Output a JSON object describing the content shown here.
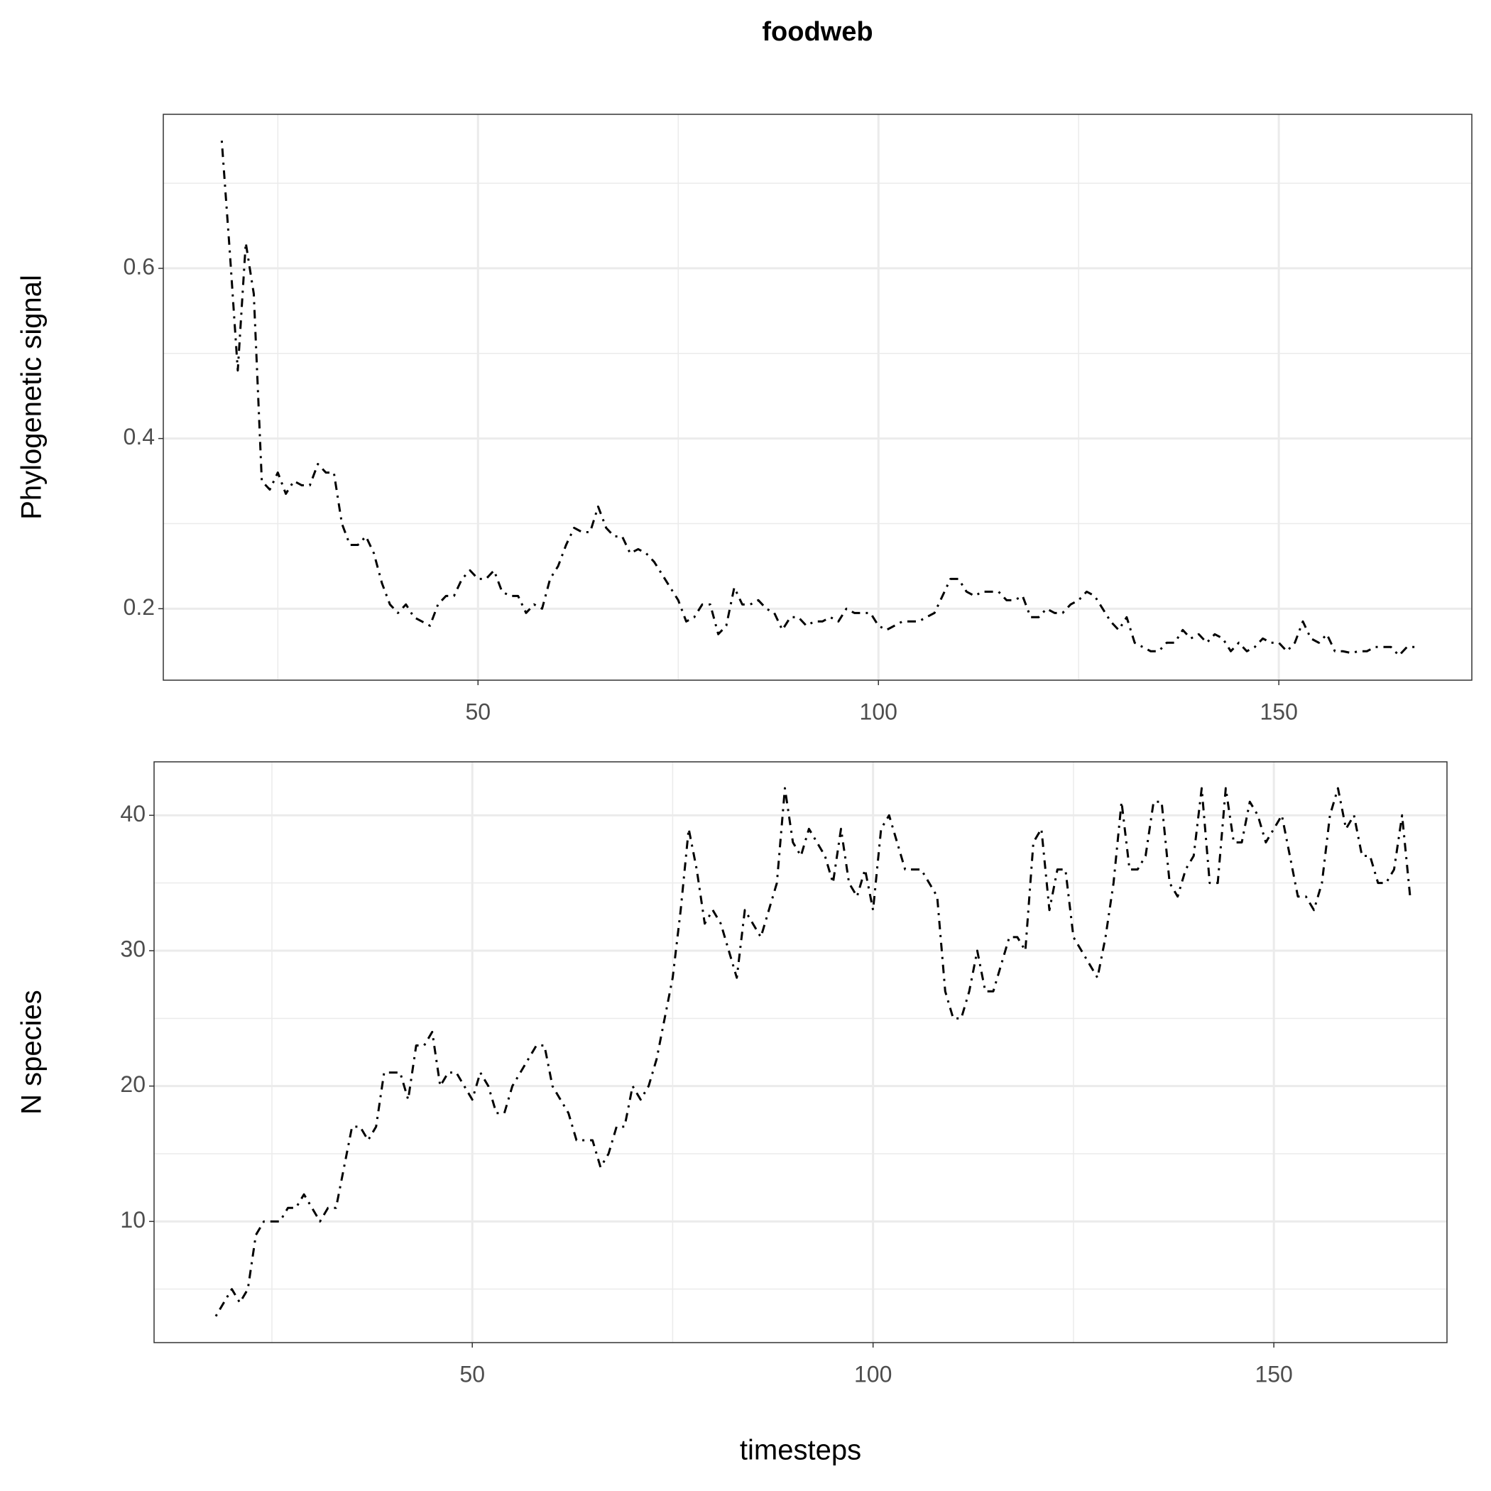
{
  "chart_data": [
    {
      "type": "line",
      "title": "foodweb",
      "ylabel": "Phylogenetic signal",
      "color": "#000000",
      "grid": true,
      "xlim": [
        10.7,
        174.1
      ],
      "xticks": [
        50,
        100,
        150
      ],
      "ylim": [
        0.116,
        0.781
      ],
      "yticks": [
        0.2,
        0.4,
        0.6
      ],
      "x": [
        18,
        19,
        20,
        21,
        22,
        23,
        24,
        25,
        26,
        27,
        28,
        29,
        30,
        31,
        32,
        33,
        34,
        35,
        36,
        37,
        38,
        39,
        40,
        41,
        42,
        43,
        44,
        45,
        46,
        47,
        48,
        49,
        50,
        51,
        52,
        53,
        54,
        55,
        56,
        57,
        58,
        59,
        60,
        61,
        62,
        63,
        64,
        65,
        66,
        67,
        68,
        69,
        70,
        71,
        72,
        73,
        74,
        75,
        76,
        77,
        78,
        79,
        80,
        81,
        82,
        83,
        84,
        85,
        86,
        87,
        88,
        89,
        90,
        91,
        92,
        93,
        94,
        95,
        96,
        97,
        98,
        99,
        100,
        101,
        102,
        103,
        104,
        105,
        106,
        107,
        108,
        109,
        110,
        111,
        112,
        113,
        114,
        115,
        116,
        117,
        118,
        119,
        120,
        121,
        122,
        123,
        124,
        125,
        126,
        127,
        128,
        129,
        130,
        131,
        132,
        133,
        134,
        135,
        136,
        137,
        138,
        139,
        140,
        141,
        142,
        143,
        144,
        145,
        146,
        147,
        148,
        149,
        150,
        151,
        152,
        153,
        154,
        155,
        156,
        157,
        158,
        159,
        160,
        161,
        162,
        163,
        164,
        165,
        166,
        167
      ],
      "values": [
        0.75,
        0.62,
        0.48,
        0.63,
        0.57,
        0.35,
        0.34,
        0.36,
        0.335,
        0.35,
        0.345,
        0.345,
        0.37,
        0.36,
        0.36,
        0.3,
        0.275,
        0.275,
        0.285,
        0.265,
        0.23,
        0.205,
        0.195,
        0.205,
        0.19,
        0.185,
        0.18,
        0.205,
        0.215,
        0.215,
        0.235,
        0.245,
        0.235,
        0.235,
        0.245,
        0.22,
        0.215,
        0.215,
        0.195,
        0.205,
        0.2,
        0.235,
        0.25,
        0.275,
        0.295,
        0.29,
        0.29,
        0.32,
        0.295,
        0.285,
        0.285,
        0.265,
        0.27,
        0.265,
        0.255,
        0.24,
        0.225,
        0.21,
        0.185,
        0.19,
        0.205,
        0.205,
        0.17,
        0.18,
        0.225,
        0.205,
        0.205,
        0.21,
        0.2,
        0.195,
        0.175,
        0.19,
        0.19,
        0.18,
        0.185,
        0.185,
        0.19,
        0.185,
        0.2,
        0.195,
        0.195,
        0.195,
        0.18,
        0.175,
        0.18,
        0.185,
        0.185,
        0.185,
        0.19,
        0.195,
        0.215,
        0.235,
        0.235,
        0.22,
        0.215,
        0.22,
        0.22,
        0.22,
        0.21,
        0.21,
        0.215,
        0.19,
        0.19,
        0.2,
        0.195,
        0.195,
        0.205,
        0.21,
        0.22,
        0.215,
        0.2,
        0.185,
        0.175,
        0.19,
        0.16,
        0.155,
        0.15,
        0.15,
        0.16,
        0.16,
        0.175,
        0.165,
        0.17,
        0.16,
        0.17,
        0.165,
        0.15,
        0.16,
        0.15,
        0.155,
        0.165,
        0.16,
        0.16,
        0.15,
        0.16,
        0.185,
        0.165,
        0.16,
        0.17,
        0.15,
        0.15,
        0.148,
        0.15,
        0.15,
        0.155,
        0.155,
        0.155,
        0.145,
        0.155,
        0.155
      ]
    },
    {
      "type": "line",
      "ylabel": "N species",
      "xlabel": "timesteps",
      "color": "#000000",
      "grid": true,
      "xlim": [
        10.3,
        171.6
      ],
      "xticks": [
        50,
        100,
        150
      ],
      "ylim": [
        1.05,
        43.95
      ],
      "yticks": [
        10,
        20,
        30,
        40
      ],
      "x": [
        18,
        19,
        20,
        21,
        22,
        23,
        24,
        25,
        26,
        27,
        28,
        29,
        30,
        31,
        32,
        33,
        34,
        35,
        36,
        37,
        38,
        39,
        40,
        41,
        42,
        43,
        44,
        45,
        46,
        47,
        48,
        49,
        50,
        51,
        52,
        53,
        54,
        55,
        56,
        57,
        58,
        59,
        60,
        61,
        62,
        63,
        64,
        65,
        66,
        67,
        68,
        69,
        70,
        71,
        72,
        73,
        74,
        75,
        76,
        77,
        78,
        79,
        80,
        81,
        82,
        83,
        84,
        85,
        86,
        87,
        88,
        89,
        90,
        91,
        92,
        93,
        94,
        95,
        96,
        97,
        98,
        99,
        100,
        101,
        102,
        103,
        104,
        105,
        106,
        107,
        108,
        109,
        110,
        111,
        112,
        113,
        114,
        115,
        116,
        117,
        118,
        119,
        120,
        121,
        122,
        123,
        124,
        125,
        126,
        127,
        128,
        129,
        130,
        131,
        132,
        133,
        134,
        135,
        136,
        137,
        138,
        139,
        140,
        141,
        142,
        143,
        144,
        145,
        146,
        147,
        148,
        149,
        150,
        151,
        152,
        153,
        154,
        155,
        156,
        157,
        158,
        159,
        160,
        161,
        162,
        163,
        164,
        165,
        166,
        167
      ],
      "values": [
        3,
        4,
        5,
        4,
        5,
        9,
        10,
        10,
        10,
        11,
        11,
        12,
        11,
        10,
        11,
        11,
        14,
        17,
        17,
        16,
        17,
        21,
        21,
        21,
        19,
        23,
        23,
        24,
        20,
        21,
        21,
        20,
        19,
        21,
        20,
        18,
        18,
        20,
        21,
        22,
        23,
        23,
        20,
        19,
        18,
        16,
        16,
        16,
        14,
        15,
        17,
        17,
        20,
        19,
        20,
        22,
        25,
        28,
        33,
        39,
        36,
        32,
        33,
        32,
        30,
        28,
        33,
        32,
        31,
        33,
        35,
        42,
        38,
        37,
        39,
        38,
        37,
        35,
        39,
        35,
        34,
        36,
        33,
        39,
        40,
        38,
        36,
        36,
        36,
        35,
        34,
        27,
        25,
        25,
        27,
        30,
        27,
        27,
        29,
        31,
        31,
        30,
        38,
        39,
        33,
        36,
        36,
        31,
        30,
        29,
        28,
        31,
        35,
        41,
        36,
        36,
        37,
        41,
        41,
        35,
        34,
        36,
        37,
        42,
        35,
        35,
        42,
        38,
        38,
        41,
        40,
        38,
        39,
        40,
        37,
        34,
        34,
        33,
        35,
        40,
        42,
        39,
        40,
        37,
        37,
        35,
        35,
        36,
        40,
        34
      ]
    }
  ]
}
